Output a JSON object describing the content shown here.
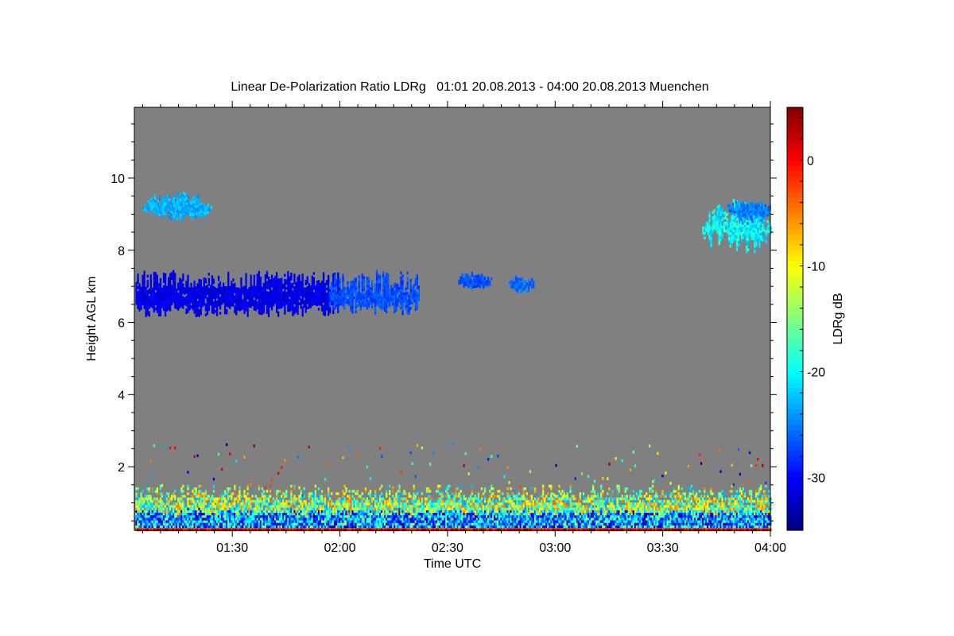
{
  "chart_data": {
    "type": "heatmap",
    "title": "Linear De-Polarization Ratio LDRg   01:01 20.08.2013 - 04:00 20.08.2013 Muenchen",
    "xlabel": "Time UTC",
    "ylabel": "Height AGL km",
    "colorbar_label": "LDRg dB",
    "x_unit": "minutes since 00:00 UTC",
    "xlim": [
      62.7,
      240
    ],
    "ylim": [
      0.24,
      11.96
    ],
    "x_ticks": [
      {
        "value": 90,
        "label": "01:30"
      },
      {
        "value": 120,
        "label": "02:00"
      },
      {
        "value": 150,
        "label": "02:30"
      },
      {
        "value": 180,
        "label": "03:00"
      },
      {
        "value": 210,
        "label": "03:30"
      },
      {
        "value": 240,
        "label": "04:00"
      }
    ],
    "x_minor_step": 5,
    "y_ticks": [
      {
        "value": 2,
        "label": "2"
      },
      {
        "value": 4,
        "label": "4"
      },
      {
        "value": 6,
        "label": "6"
      },
      {
        "value": 8,
        "label": "8"
      },
      {
        "value": 10,
        "label": "10"
      }
    ],
    "y_minor_step": 0.5,
    "colorbar_range": [
      -35,
      5
    ],
    "colorbar_ticks": [
      {
        "value": 0,
        "label": "0"
      },
      {
        "value": -10,
        "label": "-10"
      },
      {
        "value": -20,
        "label": "-20"
      },
      {
        "value": -30,
        "label": "-30"
      }
    ],
    "colormap": "jet",
    "background_no_signal": "#808080",
    "features": [
      {
        "name": "cirrus-layer-dense",
        "t": [
          63,
          120
        ],
        "h_bottom": [
          6.15,
          6.5
        ],
        "h_top": [
          6.9,
          7.4
        ],
        "ldr_db": -31,
        "spread": 1.5
      },
      {
        "name": "cirrus-layer-thin",
        "t": [
          117,
          142
        ],
        "h_bottom": [
          6.2,
          6.6
        ],
        "h_top": [
          6.7,
          7.4
        ],
        "ldr_db": -27,
        "spread": 1.5
      },
      {
        "name": "upper-patch-left",
        "t": [
          65,
          84
        ],
        "h_bottom": [
          8.8,
          9.0
        ],
        "h_top": [
          9.3,
          9.6
        ],
        "ldr_db": -23,
        "spread": 2
      },
      {
        "name": "patch-0235",
        "t": [
          153,
          162
        ],
        "h_bottom": [
          6.9,
          7.0
        ],
        "h_top": [
          7.2,
          7.4
        ],
        "ldr_db": -27,
        "spread": 1.5
      },
      {
        "name": "patch-0250",
        "t": [
          167,
          174
        ],
        "h_bottom": [
          6.8,
          6.9
        ],
        "h_top": [
          7.1,
          7.3
        ],
        "ldr_db": -26,
        "spread": 1.5
      },
      {
        "name": "upper-cloud-right",
        "t": [
          221,
          240
        ],
        "h_bottom": [
          7.8,
          8.5
        ],
        "h_top": [
          8.8,
          9.4
        ],
        "ldr_db": -20,
        "spread": 3
      },
      {
        "name": "upper-cloud-right-top",
        "t": [
          228,
          240
        ],
        "h_bottom": [
          8.6,
          9.0
        ],
        "h_top": [
          9.2,
          9.4
        ],
        "ldr_db": -25,
        "spread": 2
      }
    ],
    "boundary_layer": {
      "t": [
        63,
        240
      ],
      "h_bottom": 0.24,
      "h_top": [
        1.1,
        1.5
      ],
      "ldr_db_range": [
        -33,
        -5
      ],
      "surface_ldr_db": 0,
      "speckle_max_height": 2.6
    }
  }
}
